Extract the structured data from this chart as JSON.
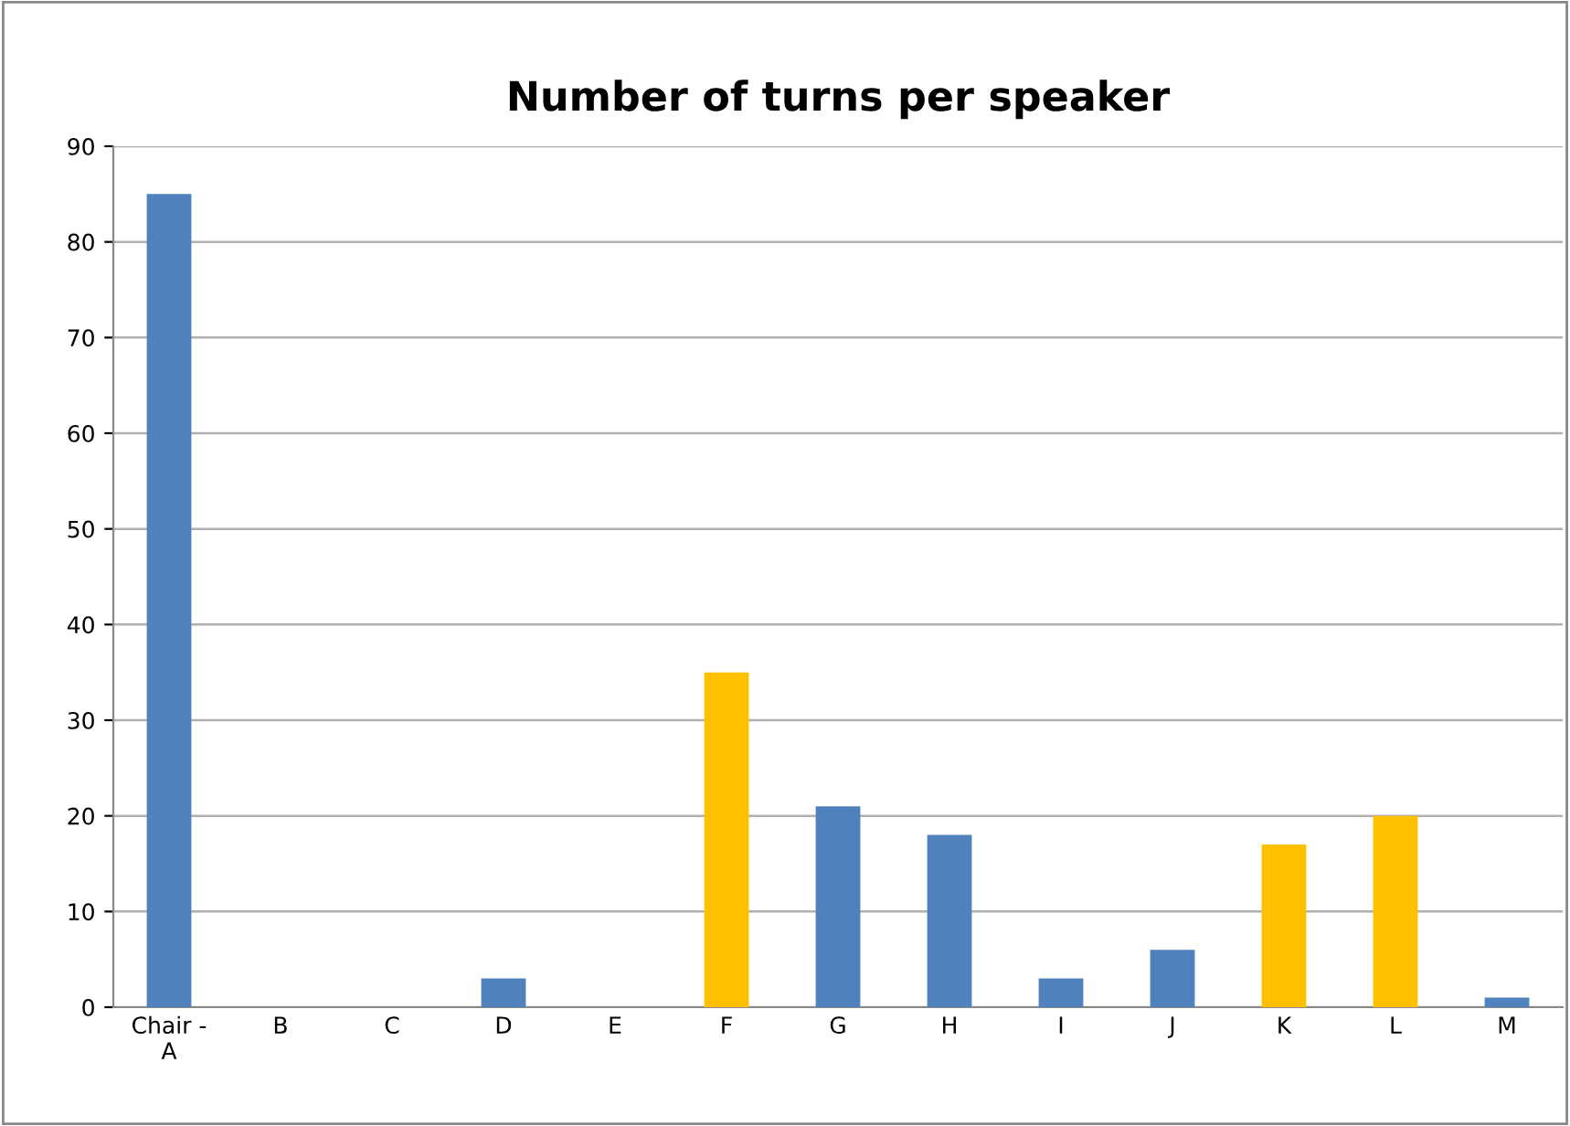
{
  "chart_data": {
    "type": "bar",
    "title": "Number of turns per speaker",
    "categories": [
      "Chair -\nA",
      "B",
      "C",
      "D",
      "E",
      "F",
      "G",
      "H",
      "I",
      "J",
      "K",
      "L",
      "M"
    ],
    "values": [
      85,
      0,
      0,
      3,
      0,
      35,
      21,
      18,
      3,
      6,
      17,
      20,
      1
    ],
    "colors": [
      "#4f81bd",
      "#4f81bd",
      "#4f81bd",
      "#4f81bd",
      "#4f81bd",
      "#ffc000",
      "#4f81bd",
      "#4f81bd",
      "#4f81bd",
      "#4f81bd",
      "#ffc000",
      "#ffc000",
      "#4f81bd"
    ],
    "ylim": [
      0,
      90
    ],
    "yticks": [
      0,
      10,
      20,
      30,
      40,
      50,
      60,
      70,
      80,
      90
    ],
    "grid": "y",
    "legend": false
  }
}
